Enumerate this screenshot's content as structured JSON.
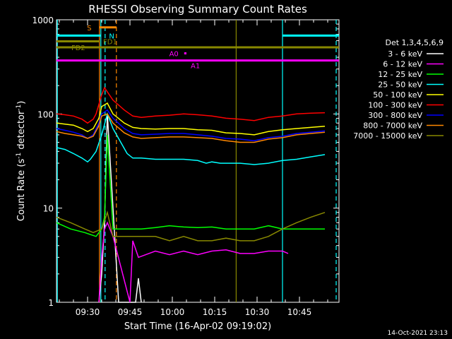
{
  "chart_data": {
    "type": "line",
    "title": "RHESSI Observing Summary Count Rates",
    "xlabel": "Start Time (16-Apr-02 09:19:02)",
    "ylabel_main": "Count Rate (s",
    "ylabel_sup1": "-1",
    "ylabel_mid": " detector",
    "ylabel_sup2": "-1",
    "ylabel_end": ")",
    "footer": "14-Oct-2021 23:13",
    "y_scale": "log",
    "ylim": [
      1,
      1000
    ],
    "y_ticks": [
      {
        "value": 1,
        "label": "1"
      },
      {
        "value": 10,
        "label": "10"
      },
      {
        "value": 100,
        "label": "100"
      },
      {
        "value": 1000,
        "label": "1000"
      }
    ],
    "xlim_minutes": [
      0,
      100
    ],
    "x_ticks": [
      {
        "t": 11,
        "label": "09:30"
      },
      {
        "t": 26,
        "label": "09:45"
      },
      {
        "t": 41,
        "label": "10:00"
      },
      {
        "t": 56,
        "label": "10:15"
      },
      {
        "t": 71,
        "label": "10:30"
      },
      {
        "t": 86,
        "label": "10:45"
      }
    ],
    "legend_title": "Det 1,3,4,5,6,9",
    "legend_placement": "right",
    "series": [
      {
        "name": "3 - 6 keV",
        "color": "#ffffff",
        "points": [
          [
            15,
            1
          ],
          [
            16,
            2
          ],
          [
            17,
            7
          ],
          [
            18,
            100
          ],
          [
            22,
            1
          ],
          [
            28,
            1
          ],
          [
            29,
            1.8
          ],
          [
            30,
            1
          ]
        ]
      },
      {
        "name": "6 - 12 keV",
        "color": "#ff00ff",
        "points": [
          [
            15,
            1
          ],
          [
            16,
            3
          ],
          [
            17,
            6
          ],
          [
            18,
            7
          ],
          [
            20,
            5
          ],
          [
            26,
            1
          ],
          [
            27,
            4.5
          ],
          [
            29,
            3
          ],
          [
            35,
            3.5
          ],
          [
            40,
            3.2
          ],
          [
            45,
            3.5
          ],
          [
            50,
            3.2
          ],
          [
            55,
            3.5
          ],
          [
            60,
            3.6
          ],
          [
            65,
            3.3
          ],
          [
            70,
            3.3
          ],
          [
            75,
            3.5
          ],
          [
            80,
            3.5
          ],
          [
            82,
            3.3
          ]
        ]
      },
      {
        "name": "12 - 25 keV",
        "color": "#00ff00",
        "points": [
          [
            0,
            7
          ],
          [
            5,
            6
          ],
          [
            10,
            5.5
          ],
          [
            14,
            5
          ],
          [
            16,
            6
          ],
          [
            17,
            8
          ],
          [
            18,
            60
          ],
          [
            20,
            6
          ],
          [
            27,
            6
          ],
          [
            30,
            6
          ],
          [
            35,
            6.2
          ],
          [
            40,
            6.5
          ],
          [
            45,
            6.3
          ],
          [
            50,
            6.2
          ],
          [
            55,
            6.3
          ],
          [
            60,
            6
          ],
          [
            65,
            6
          ],
          [
            70,
            6
          ],
          [
            75,
            6.5
          ],
          [
            80,
            6
          ],
          [
            85,
            6
          ],
          [
            90,
            6
          ],
          [
            95,
            6
          ]
        ]
      },
      {
        "name": "25 - 50 keV",
        "color": "#00ffff",
        "points": [
          [
            0,
            44
          ],
          [
            3,
            42
          ],
          [
            6,
            38
          ],
          [
            9,
            34
          ],
          [
            11,
            31
          ],
          [
            12,
            33
          ],
          [
            14,
            40
          ],
          [
            16,
            60
          ],
          [
            18,
            100
          ],
          [
            20,
            70
          ],
          [
            25,
            38
          ],
          [
            27,
            34
          ],
          [
            30,
            34
          ],
          [
            35,
            33
          ],
          [
            40,
            33
          ],
          [
            45,
            33
          ],
          [
            50,
            32
          ],
          [
            53,
            30
          ],
          [
            55,
            31
          ],
          [
            58,
            30
          ],
          [
            60,
            30
          ],
          [
            65,
            30
          ],
          [
            70,
            29
          ],
          [
            75,
            30
          ],
          [
            80,
            32
          ],
          [
            85,
            33
          ],
          [
            90,
            35
          ],
          [
            95,
            37
          ]
        ]
      },
      {
        "name": "50 - 100 keV",
        "color": "#ffff00",
        "points": [
          [
            0,
            80
          ],
          [
            3,
            78
          ],
          [
            6,
            76
          ],
          [
            9,
            70
          ],
          [
            11,
            65
          ],
          [
            13,
            70
          ],
          [
            15,
            90
          ],
          [
            16,
            120
          ],
          [
            18,
            130
          ],
          [
            20,
            100
          ],
          [
            24,
            80
          ],
          [
            27,
            72
          ],
          [
            30,
            70
          ],
          [
            35,
            69
          ],
          [
            40,
            70
          ],
          [
            45,
            70
          ],
          [
            50,
            68
          ],
          [
            55,
            67
          ],
          [
            60,
            63
          ],
          [
            65,
            62
          ],
          [
            70,
            60
          ],
          [
            75,
            65
          ],
          [
            80,
            68
          ],
          [
            85,
            70
          ],
          [
            90,
            72
          ],
          [
            95,
            74
          ]
        ]
      },
      {
        "name": "100 - 300 keV",
        "color": "#ff0000",
        "points": [
          [
            0,
            100
          ],
          [
            3,
            98
          ],
          [
            6,
            95
          ],
          [
            9,
            88
          ],
          [
            11,
            80
          ],
          [
            13,
            88
          ],
          [
            14,
            100
          ],
          [
            16,
            160
          ],
          [
            17,
            190
          ],
          [
            20,
            140
          ],
          [
            24,
            110
          ],
          [
            27,
            95
          ],
          [
            30,
            92
          ],
          [
            35,
            95
          ],
          [
            40,
            97
          ],
          [
            45,
            100
          ],
          [
            50,
            98
          ],
          [
            55,
            95
          ],
          [
            60,
            90
          ],
          [
            65,
            88
          ],
          [
            70,
            85
          ],
          [
            75,
            92
          ],
          [
            80,
            95
          ],
          [
            85,
            100
          ],
          [
            90,
            102
          ],
          [
            95,
            103
          ]
        ]
      },
      {
        "name": "300 - 800 keV",
        "color": "#0000ff",
        "points": [
          [
            0,
            70
          ],
          [
            3,
            67
          ],
          [
            6,
            64
          ],
          [
            9,
            60
          ],
          [
            11,
            55
          ],
          [
            13,
            60
          ],
          [
            15,
            80
          ],
          [
            16,
            100
          ],
          [
            18,
            110
          ],
          [
            20,
            90
          ],
          [
            24,
            70
          ],
          [
            27,
            62
          ],
          [
            30,
            60
          ],
          [
            35,
            61
          ],
          [
            40,
            62
          ],
          [
            45,
            62
          ],
          [
            50,
            60
          ],
          [
            55,
            58
          ],
          [
            60,
            55
          ],
          [
            65,
            54
          ],
          [
            70,
            52
          ],
          [
            75,
            56
          ],
          [
            80,
            58
          ],
          [
            85,
            62
          ],
          [
            90,
            64
          ],
          [
            95,
            66
          ]
        ]
      },
      {
        "name": "800 - 7000 keV",
        "color": "#ff8800",
        "points": [
          [
            0,
            65
          ],
          [
            3,
            62
          ],
          [
            6,
            60
          ],
          [
            9,
            58
          ],
          [
            11,
            55
          ],
          [
            13,
            58
          ],
          [
            15,
            75
          ],
          [
            16,
            95
          ],
          [
            18,
            100
          ],
          [
            20,
            80
          ],
          [
            24,
            63
          ],
          [
            27,
            57
          ],
          [
            30,
            55
          ],
          [
            35,
            56
          ],
          [
            40,
            57
          ],
          [
            45,
            57
          ],
          [
            50,
            56
          ],
          [
            55,
            55
          ],
          [
            60,
            52
          ],
          [
            65,
            50
          ],
          [
            70,
            50
          ],
          [
            75,
            54
          ],
          [
            80,
            56
          ],
          [
            85,
            60
          ],
          [
            90,
            62
          ],
          [
            95,
            64
          ]
        ]
      },
      {
        "name": "7000 - 15000 keV",
        "color": "#888800",
        "points": [
          [
            0,
            8
          ],
          [
            5,
            7
          ],
          [
            10,
            6
          ],
          [
            13,
            5.5
          ],
          [
            16,
            6
          ],
          [
            18,
            9
          ],
          [
            20,
            5
          ],
          [
            27,
            5
          ],
          [
            30,
            5
          ],
          [
            35,
            5
          ],
          [
            40,
            4.5
          ],
          [
            45,
            5
          ],
          [
            50,
            4.5
          ],
          [
            55,
            4.5
          ],
          [
            60,
            4.8
          ],
          [
            65,
            4.5
          ],
          [
            70,
            4.5
          ],
          [
            75,
            5
          ],
          [
            80,
            6
          ],
          [
            85,
            7
          ],
          [
            90,
            8
          ],
          [
            95,
            9
          ]
        ]
      }
    ],
    "vlines": [
      {
        "t": 0.3,
        "color": "#00ffff",
        "style": "solid"
      },
      {
        "t": 15.7,
        "color": "#00ffff",
        "style": "solid"
      },
      {
        "t": 17.2,
        "color": "#00ffff",
        "style": "dash"
      },
      {
        "t": 15.2,
        "color": "#ff8800",
        "style": "solid"
      },
      {
        "t": 21.2,
        "color": "#ff8800",
        "style": "dash"
      },
      {
        "t": 80.0,
        "color": "#00ffff",
        "solid": true,
        "style": "solid"
      },
      {
        "t": 99.0,
        "color": "#00ffff",
        "style": "dash"
      },
      {
        "t": 63.6,
        "color": "#888800",
        "style": "solid"
      }
    ],
    "flag_bars": [
      {
        "label": "S",
        "color": "#ff8800",
        "value": 830,
        "t0": 15.2,
        "t1": 21.2,
        "label_t": 12.4,
        "label_side": "left"
      },
      {
        "label": "N",
        "color": "#00ffff",
        "value": 680,
        "t0": 0,
        "t1": 15.7,
        "t0b": 80,
        "t1b": 100,
        "label_t": 18.6,
        "label_side": "right"
      },
      {
        "label": "FD1",
        "color": "#888800",
        "value": 590,
        "t0": 0,
        "t1": 15.2,
        "label_t": 16.5,
        "label_side": "right"
      },
      {
        "label": "FD2",
        "color": "#888800",
        "value": 510,
        "t0": 0,
        "t1": 100,
        "label_t": 10.2,
        "label_side": "left"
      },
      {
        "label": "A0",
        "color": "#ff00ff",
        "value": 440,
        "t0": 45.2,
        "t1": 46.0,
        "label_t": 43.2,
        "label_side": "left",
        "point": true
      },
      {
        "label": "A1",
        "color": "#ff00ff",
        "value": 370,
        "t0": 0,
        "t1": 100,
        "label_t": 47.5,
        "label_side": "right"
      }
    ]
  }
}
